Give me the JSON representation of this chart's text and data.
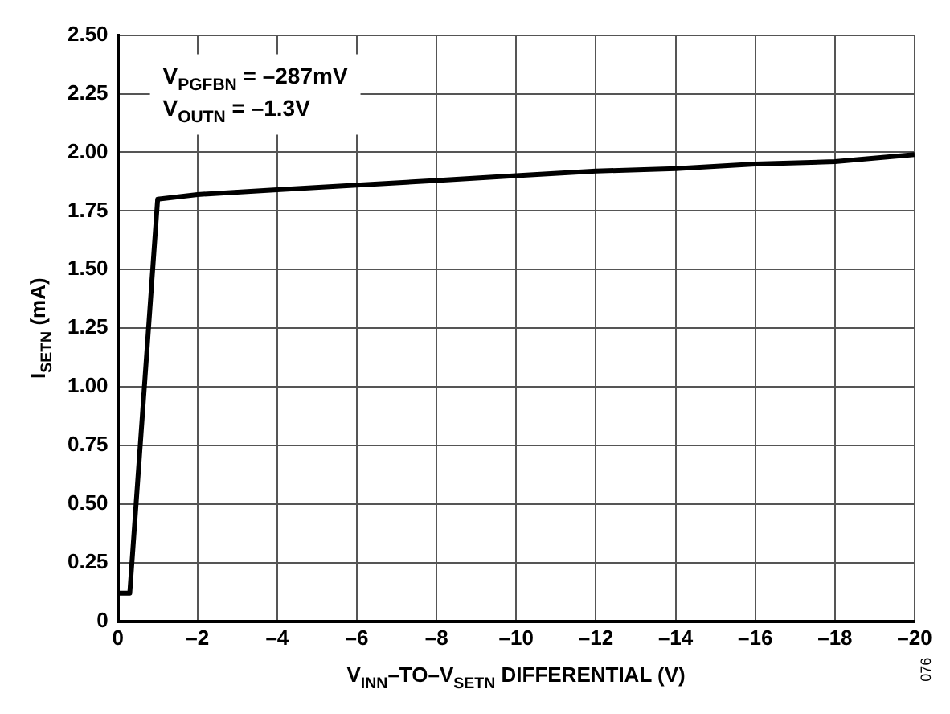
{
  "chart_data": {
    "type": "line",
    "xlabel": "V$_{INN}$–TO–V$_{SETN}$ DIFFERENTIAL (V)",
    "ylabel": "I$_{SETN}$ (mA)",
    "annotations": [
      "V$_{PGFBN}$ = –287mV",
      "V$_{OUTN}$ = –1.3V",
      "076"
    ],
    "x": [
      0,
      -0.3,
      -1,
      -2,
      -4,
      -6,
      -8,
      -10,
      -12,
      -14,
      -16,
      -18,
      -20
    ],
    "series": [
      {
        "color": "#000000",
        "values": [
          0.12,
          0.12,
          1.8,
          1.82,
          1.84,
          1.86,
          1.88,
          1.9,
          1.92,
          1.93,
          1.95,
          1.96,
          1.99
        ]
      }
    ],
    "xlim": [
      0,
      -20
    ],
    "xticks": [
      0,
      {
        "value": -2,
        "label": "–2"
      },
      {
        "value": -4,
        "label": "–4"
      },
      {
        "value": -6,
        "label": "–6"
      },
      {
        "value": -8,
        "label": "–8"
      },
      {
        "value": -10,
        "label": "–10"
      },
      {
        "value": -12,
        "label": "–12"
      },
      {
        "value": -14,
        "label": "–14"
      },
      {
        "value": -16,
        "label": "–16"
      },
      {
        "value": -18,
        "label": "–18"
      },
      {
        "value": -20,
        "label": "–20"
      }
    ],
    "ylim": [
      0,
      2.5
    ],
    "yticks": [
      0,
      0.25,
      {
        "value": 0.5,
        "label": "0.50"
      },
      0.75,
      {
        "value": 1,
        "label": "1.00"
      },
      1.25,
      {
        "value": 1.5,
        "label": "1.50"
      },
      1.75,
      {
        "value": 2,
        "label": "2.00"
      },
      2.25,
      {
        "value": 2.5,
        "label": "2.50"
      }
    ],
    "grid": true,
    "legend": false,
    "marker": "none",
    "line_style": "solid"
  }
}
